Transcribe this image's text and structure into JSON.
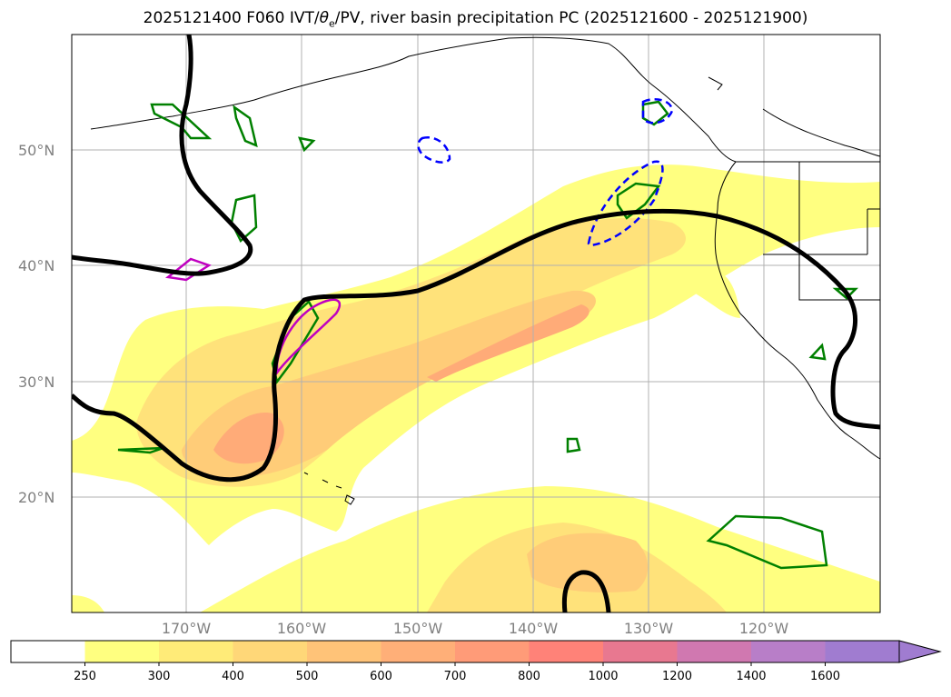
{
  "title": "2025121400 F060 IVT/θe/PV, river basin precipitation PC (2025121600 - 2025121900)",
  "title_parts": {
    "pre": "2025121400 F060 IVT/",
    "theta": "θ",
    "sub": "e",
    "post": "/PV, river basin precipitation PC (2025121600 - 2025121900)"
  },
  "lat_labels": [
    "50°N",
    "40°N",
    "30°N",
    "20°N"
  ],
  "lon_labels": [
    "170°W",
    "160°W",
    "150°W",
    "140°W",
    "130°W",
    "120°W"
  ],
  "colorbar": {
    "ticks": [
      "250",
      "300",
      "400",
      "500",
      "600",
      "700",
      "800",
      "1000",
      "1200",
      "1400",
      "1600"
    ],
    "colors": [
      "#ffffff",
      "#ffff80",
      "#ffeb78",
      "#ffd778",
      "#ffc378",
      "#ffaf78",
      "#ff9b78",
      "#ff8278",
      "#e87890",
      "#d078b0",
      "#b87ec8",
      "#a07cd0"
    ],
    "extend": "max"
  },
  "colors": {
    "ivt_fill": [
      "#ffff80",
      "#ffe27a",
      "#ffcc78",
      "#ffab78",
      "#ff9070"
    ],
    "pv_contour": "#000000",
    "theta_e_pos": "#008000",
    "theta_e_neg": "#0000ff",
    "magenta": "#c000c0",
    "grid": "#b0b0b0"
  }
}
